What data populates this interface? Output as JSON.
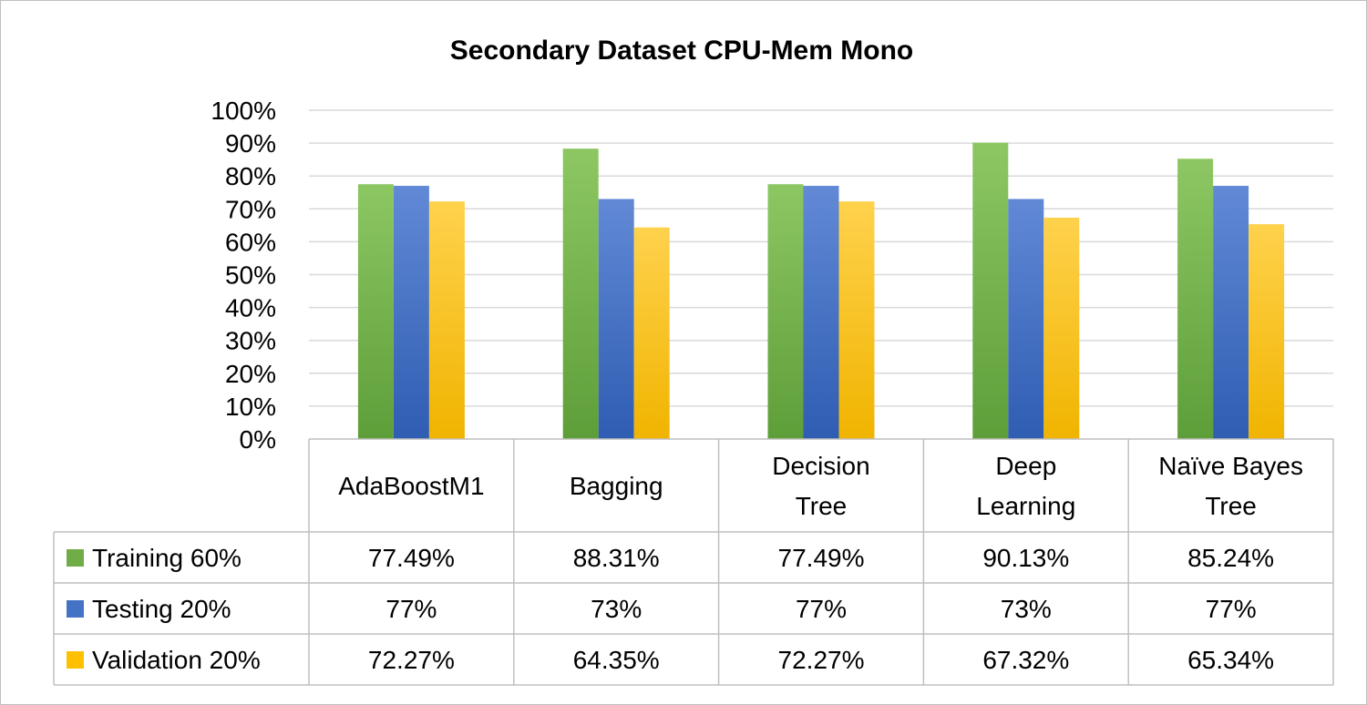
{
  "chart_data": {
    "type": "bar",
    "title": "Secondary Dataset CPU-Mem Mono",
    "categories": [
      [
        "AdaBoostM1"
      ],
      [
        "Bagging"
      ],
      [
        "Decision",
        "Tree"
      ],
      [
        "Deep",
        "Learning"
      ],
      [
        "Naïve Bayes",
        "Tree"
      ]
    ],
    "ylim": [
      0,
      100
    ],
    "yticks": [
      "0%",
      "10%",
      "20%",
      "30%",
      "40%",
      "50%",
      "60%",
      "70%",
      "80%",
      "90%",
      "100%"
    ],
    "grid": true,
    "legend": "data-table",
    "series": [
      {
        "name": "Training 60%",
        "color": "#70ad47",
        "color_light": "#8cc763",
        "color_dark": "#5e9e39",
        "values": [
          77.49,
          88.31,
          77.49,
          90.13,
          85.24
        ],
        "labels": [
          "77.49%",
          "88.31%",
          "77.49%",
          "90.13%",
          "85.24%"
        ]
      },
      {
        "name": "Testing 20%",
        "color": "#4472c4",
        "color_light": "#6189d6",
        "color_dark": "#2f5db2",
        "values": [
          77,
          73,
          77,
          73,
          77
        ],
        "labels": [
          "77%",
          "73%",
          "77%",
          "73%",
          "77%"
        ]
      },
      {
        "name": "Validation 20%",
        "color": "#ffc000",
        "color_light": "#ffd24d",
        "color_dark": "#f0b400",
        "values": [
          72.27,
          64.35,
          72.27,
          67.32,
          65.34
        ],
        "labels": [
          "72.27%",
          "64.35%",
          "72.27%",
          "67.32%",
          "65.34%"
        ]
      }
    ]
  }
}
